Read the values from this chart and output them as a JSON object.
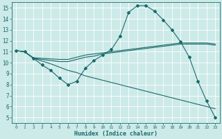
{
  "xlabel": "Humidex (Indice chaleur)",
  "xlim": [
    -0.5,
    23.5
  ],
  "ylim": [
    4.5,
    15.5
  ],
  "xticks": [
    0,
    1,
    2,
    3,
    4,
    5,
    6,
    7,
    8,
    9,
    10,
    11,
    12,
    13,
    14,
    15,
    16,
    17,
    18,
    19,
    20,
    21,
    22,
    23
  ],
  "yticks": [
    5,
    6,
    7,
    8,
    9,
    10,
    11,
    12,
    13,
    14,
    15
  ],
  "bg_color": "#cceae8",
  "line_color": "#1a6b6b",
  "grid_color": "#ffffff",
  "lines": [
    {
      "x": [
        0,
        1,
        2,
        3,
        4,
        5,
        6,
        7,
        8,
        9,
        10,
        11,
        12,
        13,
        14,
        15,
        16,
        17,
        18,
        19,
        20,
        21,
        22,
        23
      ],
      "y": [
        11.1,
        11.0,
        10.4,
        9.8,
        9.3,
        8.6,
        8.0,
        8.3,
        9.5,
        10.2,
        10.7,
        11.2,
        12.4,
        14.6,
        15.2,
        15.2,
        14.7,
        13.9,
        13.0,
        11.9,
        10.5,
        8.3,
        6.5,
        5.0
      ],
      "marker": "D",
      "markersize": 2.0,
      "linestyle": "-",
      "linewidth": 0.8
    },
    {
      "x": [
        0,
        1,
        2,
        3,
        4,
        5,
        6,
        7,
        8,
        9,
        10,
        11,
        12,
        13,
        14,
        15,
        16,
        17,
        18,
        19,
        20,
        21,
        22,
        23
      ],
      "y": [
        11.1,
        11.0,
        10.4,
        10.3,
        10.2,
        10.1,
        10.1,
        10.3,
        10.5,
        10.6,
        10.8,
        10.9,
        11.0,
        11.1,
        11.2,
        11.3,
        11.4,
        11.5,
        11.6,
        11.7,
        11.7,
        11.7,
        11.7,
        11.6
      ],
      "marker": null,
      "markersize": 0,
      "linestyle": "-",
      "linewidth": 0.8
    },
    {
      "x": [
        0,
        1,
        2,
        3,
        4,
        5,
        6,
        7,
        8,
        9,
        10,
        11,
        12,
        13,
        14,
        15,
        16,
        17,
        18,
        19,
        20,
        21,
        22,
        23
      ],
      "y": [
        11.1,
        11.0,
        10.45,
        10.4,
        10.35,
        10.3,
        10.3,
        10.5,
        10.7,
        10.8,
        10.9,
        11.0,
        11.1,
        11.2,
        11.3,
        11.4,
        11.5,
        11.6,
        11.7,
        11.8,
        11.8,
        11.8,
        11.8,
        11.7
      ],
      "marker": null,
      "markersize": 0,
      "linestyle": "-",
      "linewidth": 0.8
    },
    {
      "x": [
        0,
        1,
        2,
        3,
        4,
        5,
        6,
        7,
        8,
        9,
        10,
        11,
        12,
        13,
        14,
        15,
        16,
        17,
        18,
        19,
        20,
        21,
        22,
        23
      ],
      "y": [
        11.1,
        11.0,
        10.4,
        10.15,
        9.9,
        9.6,
        9.3,
        9.1,
        8.8,
        8.6,
        8.4,
        8.2,
        8.0,
        7.8,
        7.6,
        7.4,
        7.2,
        7.0,
        6.8,
        6.6,
        6.4,
        6.2,
        6.0,
        5.8
      ],
      "marker": null,
      "markersize": 0,
      "linestyle": "-",
      "linewidth": 0.8
    }
  ]
}
